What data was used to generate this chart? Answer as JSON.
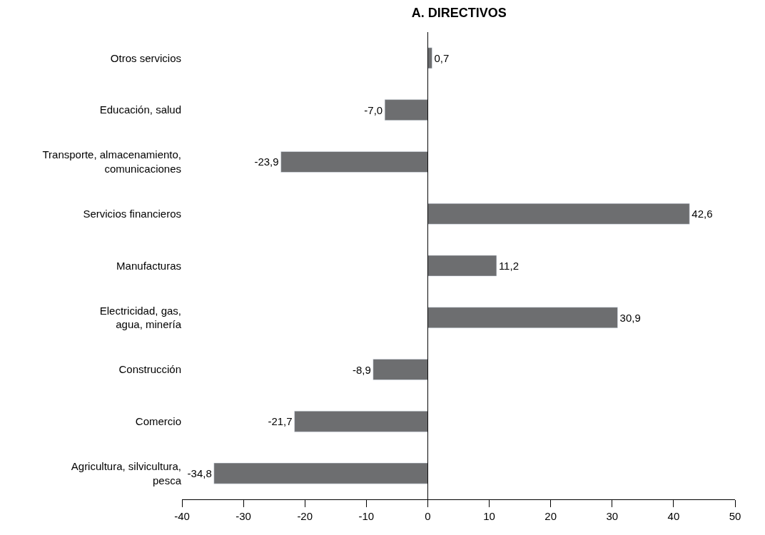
{
  "chart_data": {
    "type": "bar",
    "orientation": "horizontal",
    "title": "A. DIRECTIVOS",
    "categories": [
      "Otros servicios",
      "Educación, salud",
      "Transporte, almacenamiento,\ncomunicaciones",
      "Servicios financieros",
      "Manufacturas",
      "Electricidad, gas,\nagua, minería",
      "Construcción",
      "Comercio",
      "Agricultura, silvicultura,\npesca"
    ],
    "values": [
      0.7,
      -7.0,
      -23.9,
      42.6,
      11.2,
      30.9,
      -8.9,
      -21.7,
      -34.8
    ],
    "value_labels": [
      "0,7",
      "-7,0",
      "-23,9",
      "42,6",
      "11,2",
      "30,9",
      "-8,9",
      "-21,7",
      "-34,8"
    ],
    "color": "#6d6e70",
    "xlim": [
      -40,
      50
    ],
    "xticks": [
      -40,
      -30,
      -20,
      -10,
      0,
      10,
      20,
      30,
      40,
      50
    ],
    "ref_lines": [
      {
        "axis": "x",
        "value": 0,
        "color": "#000000",
        "line_style": "solid"
      }
    ],
    "legend": false
  }
}
